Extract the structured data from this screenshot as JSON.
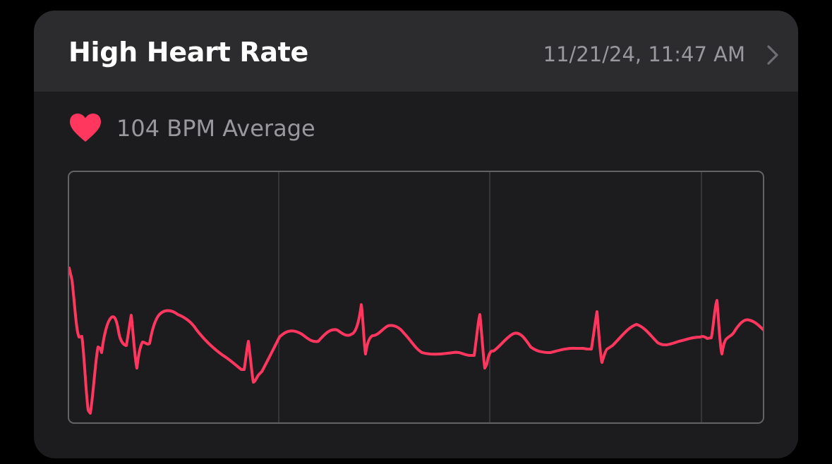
{
  "card": {
    "title": "High Heart Rate",
    "date": "11/21/24, 11:47 AM",
    "chevron_icon": "chevron-right-icon",
    "heart_icon": "heart-icon",
    "average_text": "104 BPM Average"
  },
  "colors": {
    "background": "#000000",
    "card_body": "#1c1c1e",
    "card_header": "#2c2c2e",
    "title": "#ffffff",
    "secondary_text": "#98989d",
    "accent_red": "#ff375f",
    "chart_frame": "#636366",
    "grid_line": "#48484a"
  },
  "ecg": {
    "grid_divisions": 3.3,
    "trace_icon": "ecg-waveform"
  }
}
